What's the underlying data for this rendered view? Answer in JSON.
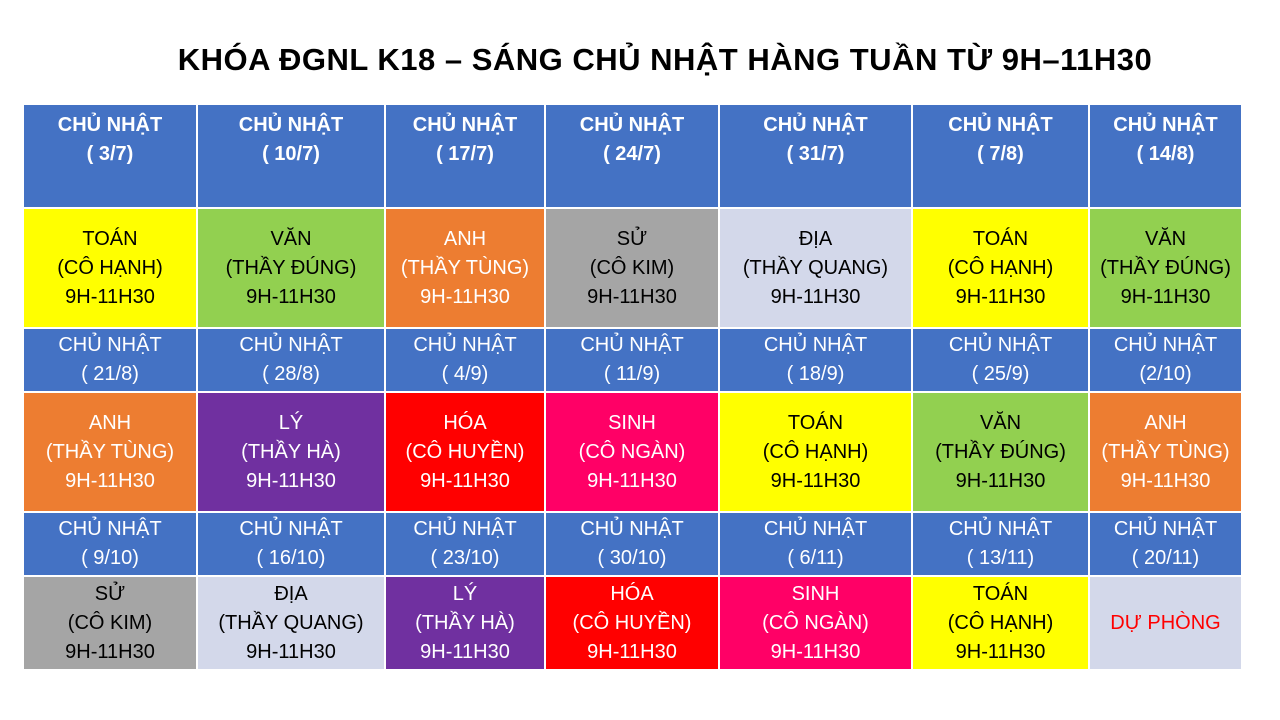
{
  "title": "KHÓA ĐGNL K18 – SÁNG CHỦ NHẬT HÀNG TUẦN TỪ 9H–11H30",
  "colors": {
    "header_bg": "#4472c4",
    "toan": "#ffff00",
    "van": "#92d050",
    "anh": "#ed7d31",
    "su": "#a5a5a5",
    "dia": "#d3d8ea",
    "ly": "#7030a0",
    "hoa": "#ff0000",
    "sinh": "#ff0066",
    "du_phong_bg": "#d3d8ea",
    "du_phong_text": "#ff0000"
  },
  "weeks": [
    {
      "headers": [
        {
          "label": "CHỦ NHẬT",
          "date": "( 3/7)"
        },
        {
          "label": "CHỦ NHẬT",
          "date": "( 10/7)"
        },
        {
          "label": "CHỦ NHẬT",
          "date": "( 17/7)"
        },
        {
          "label": "CHỦ NHẬT",
          "date": "( 24/7)"
        },
        {
          "label": "CHỦ NHẬT",
          "date": "( 31/7)"
        },
        {
          "label": "CHỦ NHẬT",
          "date": "( 7/8)"
        },
        {
          "label": "CHỦ NHẬT",
          "date": "( 14/8)"
        }
      ],
      "sessions": [
        {
          "subject": "TOÁN",
          "teacher": "(CÔ HẠNH)",
          "time": "9H-11H30"
        },
        {
          "subject": "VĂN",
          "teacher": "(THẦY ĐÚNG)",
          "time": "9H-11H30"
        },
        {
          "subject": "ANH",
          "teacher": "(THẦY TÙNG)",
          "time": "9H-11H30"
        },
        {
          "subject": "SỬ",
          "teacher": "(CÔ KIM)",
          "time": "9H-11H30"
        },
        {
          "subject": "ĐỊA",
          "teacher": "(THẦY QUANG)",
          "time": "9H-11H30"
        },
        {
          "subject": "TOÁN",
          "teacher": "(CÔ HẠNH)",
          "time": "9H-11H30"
        },
        {
          "subject": "VĂN",
          "teacher": "(THẦY ĐÚNG)",
          "time": "9H-11H30"
        }
      ]
    },
    {
      "headers": [
        {
          "label": "CHỦ NHẬT",
          "date": "( 21/8)"
        },
        {
          "label": "CHỦ NHẬT",
          "date": "( 28/8)"
        },
        {
          "label": "CHỦ NHẬT",
          "date": "( 4/9)"
        },
        {
          "label": "CHỦ NHẬT",
          "date": "( 11/9)"
        },
        {
          "label": "CHỦ NHẬT",
          "date": "( 18/9)"
        },
        {
          "label": "CHỦ NHẬT",
          "date": "( 25/9)"
        },
        {
          "label": "CHỦ NHẬT",
          "date": "(2/10)"
        }
      ],
      "sessions": [
        {
          "subject": "ANH",
          "teacher": "(THẦY TÙNG)",
          "time": "9H-11H30"
        },
        {
          "subject": "LÝ",
          "teacher": "(THẦY HÀ)",
          "time": "9H-11H30"
        },
        {
          "subject": "HÓA",
          "teacher": "(CÔ HUYỀN)",
          "time": "9H-11H30"
        },
        {
          "subject": "SINH",
          "teacher": "(CÔ NGÀN)",
          "time": "9H-11H30"
        },
        {
          "subject": "TOÁN",
          "teacher": "(CÔ HẠNH)",
          "time": "9H-11H30"
        },
        {
          "subject": "VĂN",
          "teacher": "(THẦY ĐÚNG)",
          "time": "9H-11H30"
        },
        {
          "subject": "ANH",
          "teacher": "(THẦY TÙNG)",
          "time": "9H-11H30"
        }
      ]
    },
    {
      "headers": [
        {
          "label": "CHỦ NHẬT",
          "date": "( 9/10)"
        },
        {
          "label": "CHỦ NHẬT",
          "date": "( 16/10)"
        },
        {
          "label": "CHỦ NHẬT",
          "date": "( 23/10)"
        },
        {
          "label": "CHỦ NHẬT",
          "date": "( 30/10)"
        },
        {
          "label": "CHỦ NHẬT",
          "date": "( 6/11)"
        },
        {
          "label": "CHỦ NHẬT",
          "date": "( 13/11)"
        },
        {
          "label": "CHỦ NHẬT",
          "date": "( 20/11)"
        }
      ],
      "sessions": [
        {
          "subject": "SỬ",
          "teacher": "(CÔ KIM)",
          "time": "9H-11H30"
        },
        {
          "subject": "ĐỊA",
          "teacher": "(THẦY QUANG)",
          "time": "9H-11H30"
        },
        {
          "subject": "LÝ",
          "teacher": "(THẦY HÀ)",
          "time": "9H-11H30"
        },
        {
          "subject": "HÓA",
          "teacher": "(CÔ HUYỀN)",
          "time": "9H-11H30"
        },
        {
          "subject": "SINH",
          "teacher": "(CÔ NGÀN)",
          "time": "9H-11H30"
        },
        {
          "subject": "TOÁN",
          "teacher": "(CÔ HẠNH)",
          "time": "9H-11H30"
        },
        {
          "subject": "DỰ PHÒNG"
        }
      ]
    }
  ]
}
